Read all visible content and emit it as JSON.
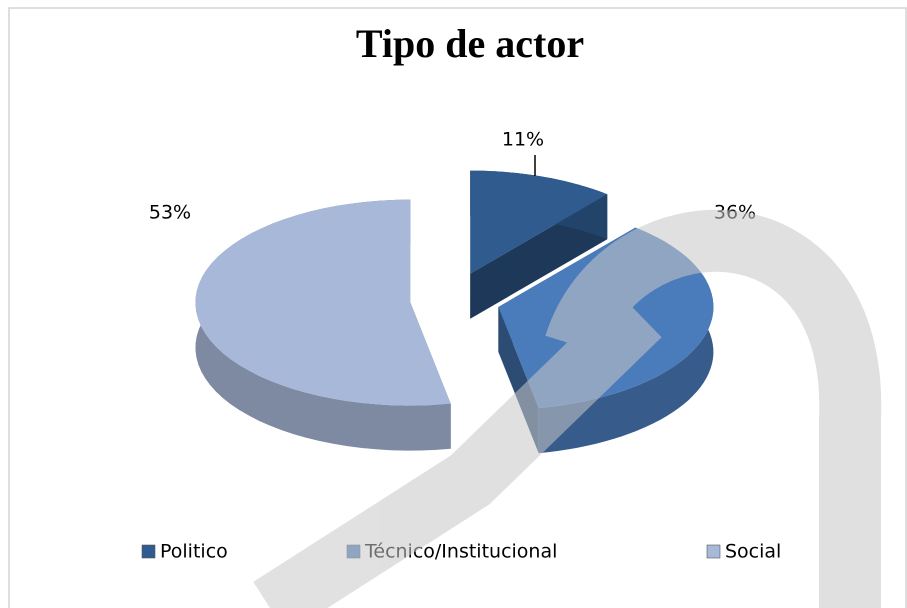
{
  "chart_data": {
    "type": "pie3d",
    "title": "Tipo de actor",
    "categories": [
      "Politico",
      "Técnico/Institucional",
      "Social"
    ],
    "values": [
      11,
      36,
      53
    ],
    "value_labels": [
      "11%",
      "36%",
      "53%"
    ],
    "colors": [
      "#2f5b8e",
      "#4a7bbb",
      "#a7b8d8"
    ],
    "legend": "bottom"
  }
}
